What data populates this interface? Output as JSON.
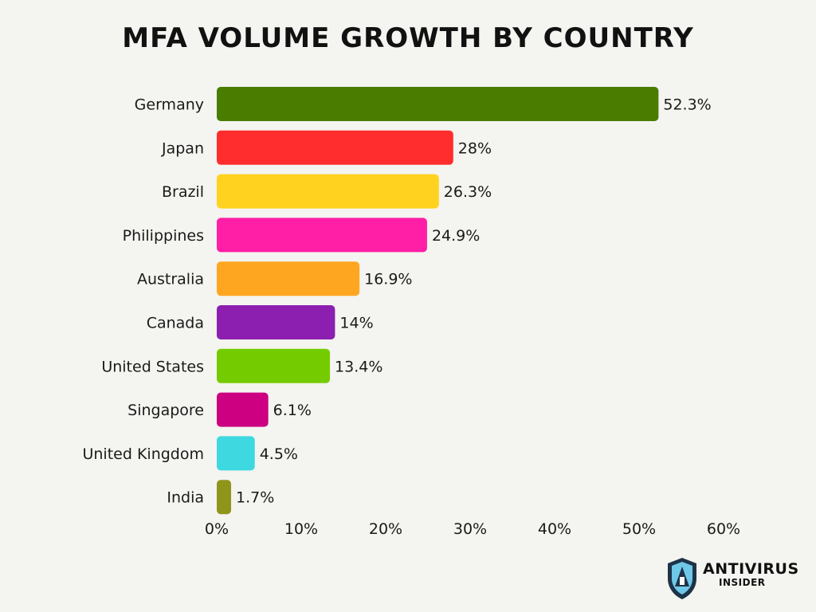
{
  "chart_data": {
    "type": "bar",
    "orientation": "horizontal",
    "title": "MFA VOLUME GROWTH BY COUNTRY",
    "categories": [
      "Germany",
      "Japan",
      "Brazil",
      "Philippines",
      "Australia",
      "Canada",
      "United States",
      "Singapore",
      "United Kingdom",
      "India"
    ],
    "values": [
      52.3,
      28,
      26.3,
      24.9,
      16.9,
      14,
      13.4,
      6.1,
      4.5,
      1.7
    ],
    "value_labels": [
      "52.3%",
      "28%",
      "26.3%",
      "24.9%",
      "16.9%",
      "14%",
      "13.4%",
      "6.1%",
      "4.5%",
      "1.7%"
    ],
    "colors": [
      "#4a7c00",
      "#ff2d2d",
      "#ffd21f",
      "#ff1fa6",
      "#ffa621",
      "#8c1fb0",
      "#74cc00",
      "#cc0080",
      "#3dd8e0",
      "#8f951a"
    ],
    "x_ticks": [
      "0%",
      "10%",
      "20%",
      "30%",
      "40%",
      "50%",
      "60%"
    ],
    "xlim": [
      0,
      60
    ],
    "xlabel": "",
    "ylabel": "",
    "grid": false,
    "legend": "none"
  },
  "logo": {
    "word": "ANTIVIRUS",
    "sub": "INSIDER",
    "shield_color": "#1e3347",
    "accent_color": "#6fc8e8"
  }
}
